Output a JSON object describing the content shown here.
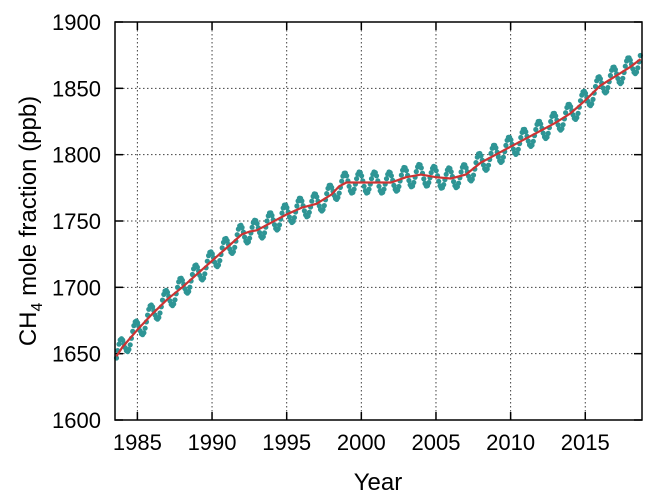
{
  "chart_data": {
    "type": "line",
    "xlabel": "Year",
    "ylabel_main": "CH",
    "ylabel_sub": "4",
    "ylabel_rest": " mole fraction (ppb)",
    "xlim": [
      1983.5,
      2018.8
    ],
    "ylim": [
      1600,
      1900
    ],
    "xticks": [
      1985,
      1990,
      1995,
      2000,
      2005,
      2010,
      2015
    ],
    "xtick_labels": [
      "1985",
      "1990",
      "1995",
      "2000",
      "2005",
      "2010",
      "2015"
    ],
    "yticks": [
      1600,
      1650,
      1700,
      1750,
      1800,
      1850,
      1900
    ],
    "ytick_labels": [
      "1600",
      "1650",
      "1700",
      "1750",
      "1800",
      "1850",
      "1900"
    ],
    "grid": true,
    "legend": "none",
    "series": [
      {
        "style": "points",
        "color": "#2e9595",
        "seasonal_amplitude": 8,
        "seasonal_peak_month": 11,
        "points_per_year": 12,
        "x_range": [
          1983.6,
          2018.7
        ]
      },
      {
        "style": "line",
        "color": "#cc3333",
        "x": [
          1983.6,
          1984,
          1985,
          1986,
          1987,
          1988,
          1989,
          1990,
          1991,
          1992,
          1992.5,
          1993,
          1994,
          1995,
          1996,
          1997,
          1998,
          1998.5,
          1999,
          2000,
          2001,
          2002,
          2003,
          2004,
          2005,
          2006,
          2007,
          2008,
          2009,
          2010,
          2011,
          2012,
          2013,
          2014,
          2015,
          2016,
          2017,
          2018,
          2018.7
        ],
        "y": [
          1648,
          1655,
          1668,
          1680,
          1691,
          1700,
          1710,
          1720,
          1730,
          1740,
          1742,
          1743,
          1749,
          1755,
          1760,
          1763,
          1770,
          1776,
          1779,
          1779,
          1779,
          1779,
          1783,
          1785,
          1783,
          1782,
          1785,
          1794,
          1800,
          1806,
          1812,
          1818,
          1824,
          1831,
          1841,
          1852,
          1859,
          1866,
          1872
        ]
      }
    ]
  }
}
